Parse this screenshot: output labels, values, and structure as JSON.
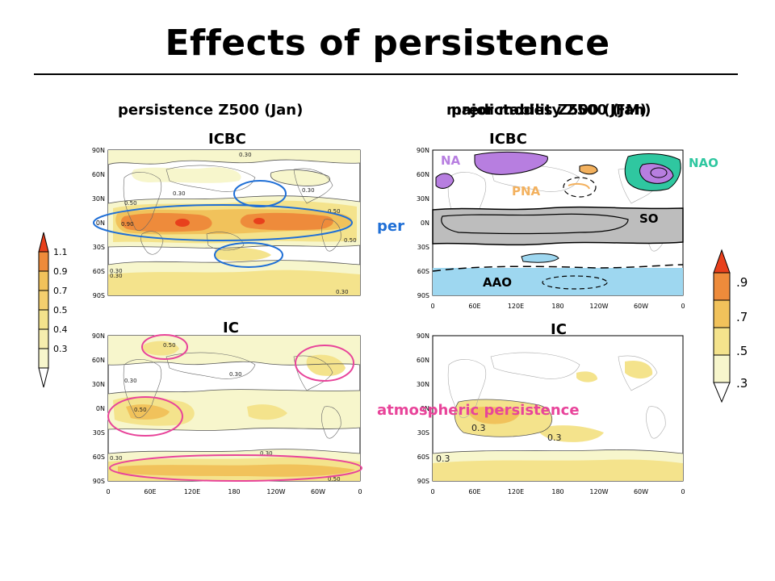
{
  "slide": {
    "title": "Effects of persistence"
  },
  "columns": {
    "left_title": "persistence Z500 (Jan)",
    "right_title_a": "major modes Z500 (JFM)",
    "right_title_b": "predictability Z500 (Jan)"
  },
  "panels": {
    "top_left_label": "ICBC",
    "bottom_left_label": "IC",
    "top_right_label": "ICBC",
    "bottom_right_label": "IC"
  },
  "maps": {
    "lat_ticks": [
      "90N",
      "60N",
      "30N",
      "0N",
      "30S",
      "60S",
      "90S"
    ],
    "lon_ticks": [
      "0",
      "60E",
      "120E",
      "180",
      "120W",
      "60W",
      "0"
    ],
    "contour_labels": {
      "top_left": [
        "0.30",
        "0.30",
        "0.50",
        "0.30",
        "0.90",
        "0.50",
        "0.30",
        "0.50",
        "0.30",
        "0.30"
      ],
      "bottom_left": [
        "0.50",
        "0.30",
        "0.30",
        "0.50",
        "0.30",
        "0.30",
        "0.50"
      ],
      "bottom_right": [
        "0.3",
        "0.3",
        "0.3"
      ]
    }
  },
  "overlays": {
    "na": "NA",
    "pna": "PNA",
    "nao": "NAO",
    "so": "SO",
    "aao": "AAO",
    "per": "per",
    "atmospheric_persistence": "atmospheric persistence"
  },
  "colorbar_left": {
    "labels": [
      "1.1",
      "0.9",
      "0.7",
      "0.5",
      "0.4",
      "0.3"
    ]
  },
  "colorbar_right": {
    "labels": [
      ".9",
      ".7",
      ".5",
      ".3"
    ]
  },
  "colors": {
    "shade_lowest": "#f7f6cc",
    "shade_low": "#f4e38c",
    "shade_mid": "#f1c25b",
    "shade_high": "#ee8b3b",
    "shade_top": "#e8401c",
    "blue_ellipse": "#1f6fd6",
    "pink_ellipse": "#e8449a",
    "na_purple": "#b77ee0",
    "pna_orange": "#f3b15e",
    "nao_teal": "#2fc7a0",
    "so_gray": "#bdbdbd",
    "aao_blue": "#9ed7f0"
  }
}
